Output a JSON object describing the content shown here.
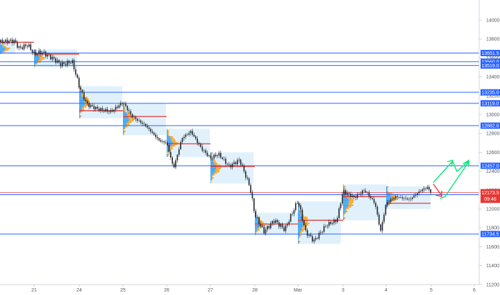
{
  "chart_data": {
    "type": "candlestick",
    "title": "",
    "xlabel": "",
    "ylabel": "",
    "ylim": [
      11150,
      14200
    ],
    "y_ticks": [
      "14000.0",
      "13800.0",
      "13600.0",
      "13400.0",
      "13200.0",
      "13000.0",
      "12800.0",
      "12600.0",
      "12400.0",
      "12200.0",
      "12000.0",
      "11800.0",
      "11600.0",
      "11400.0",
      "11200.0"
    ],
    "x_ticks": [
      "21",
      "24",
      "25",
      "26",
      "27",
      "28",
      "Mar",
      "3",
      "4",
      "5",
      "6"
    ],
    "levels": [
      {
        "label": "13651.5",
        "value": 13651.5
      },
      {
        "label": "13560.0",
        "value": 13560.0
      },
      {
        "label": "13519.0",
        "value": 13519.0
      },
      {
        "label": "13235.0",
        "value": 13235.0
      },
      {
        "label": "13119.0",
        "value": 13119.0
      },
      {
        "label": "12882.0",
        "value": 12882.0
      },
      {
        "label": "12457.0",
        "value": 12457.0
      },
      {
        "label": "12151.0",
        "value": 12151.0
      },
      {
        "label": "11734.5",
        "value": 11734.5
      }
    ],
    "current_price": {
      "label": "12173.5",
      "value": 12173.5,
      "countdown": "09:46"
    },
    "point_of_control": [
      {
        "session": "21",
        "value": 13765
      },
      {
        "session": "21b",
        "value": 13640
      },
      {
        "session": "24",
        "value": 13040
      },
      {
        "session": "25",
        "value": 12980
      },
      {
        "session": "26",
        "value": 12690
      },
      {
        "session": "27",
        "value": 12450
      },
      {
        "session": "28",
        "value": 11840
      },
      {
        "session": "Mar",
        "value": 11880
      },
      {
        "session": "3",
        "value": 12130
      },
      {
        "session": "4",
        "value": 12060
      }
    ],
    "annotations": [
      "forecast-arrow-up",
      "forecast-arrow-down"
    ],
    "colors": {
      "level_line": "#2962ff",
      "level_label_bg": "#2962ff",
      "poc_line": "#e53935",
      "current_price_bg": "#e53935",
      "candle": "#1e222d",
      "profile_box": "#e1f1fb",
      "profile_blue": "#2196f3",
      "profile_orange": "#ff9800",
      "arrow_up": "#00e676",
      "arrow_down": "#e53935"
    }
  }
}
